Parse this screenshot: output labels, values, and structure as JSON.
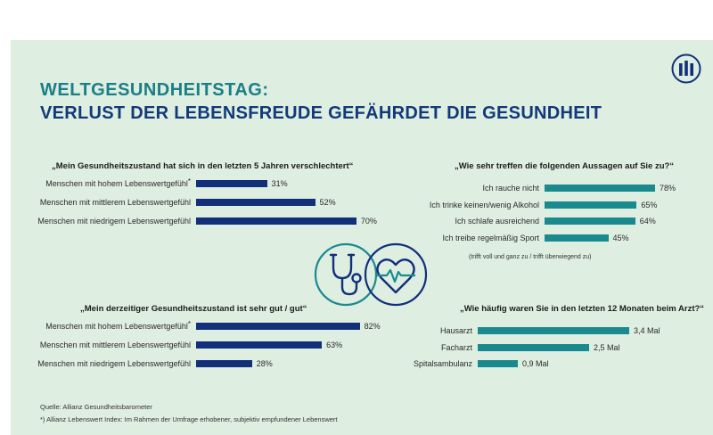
{
  "header": {
    "title_line1": "WELTGESUNDHEITSTAG:",
    "title_line2": "VERLUST DER LEBENSFREUDE GEFÄHRDET DIE GESUNDHEIT"
  },
  "colors": {
    "background": "#deeee1",
    "navy": "#12307a",
    "teal": "#1a8a8f",
    "title_teal": "#1b7f86"
  },
  "chart_data": [
    {
      "type": "bar",
      "orientation": "horizontal",
      "title": "„Mein Gesundheitszustand hat sich in den letzten 5 Jahren verschlechtert“",
      "categories": [
        "Menschen mit hohem Lebenswertgefühl",
        "Menschen mit mittlerem Lebenswertgefühl",
        "Menschen mit niedrigem Lebenswertgefühl"
      ],
      "values": [
        31,
        52,
        70
      ],
      "value_labels": [
        "31%",
        "52%",
        "70%"
      ],
      "asterisk": [
        true,
        false,
        false
      ],
      "xlim": [
        0,
        100
      ],
      "color": "navy"
    },
    {
      "type": "bar",
      "orientation": "horizontal",
      "title": "„Wie sehr treffen die folgenden Aussagen auf Sie zu?“",
      "categories": [
        "Ich rauche nicht",
        "Ich trinke keinen/wenig Alkohol",
        "Ich schlafe ausreichend",
        "Ich treibe regelmäßig Sport"
      ],
      "values": [
        78,
        65,
        64,
        45
      ],
      "value_labels": [
        "78%",
        "65%",
        "64%",
        "45%"
      ],
      "xlim": [
        0,
        100
      ],
      "note": "(trifft voll und ganz zu / trifft überwiegend zu)",
      "color": "teal"
    },
    {
      "type": "bar",
      "orientation": "horizontal",
      "title": "„Mein derzeitiger Gesundheitszustand ist sehr gut / gut“",
      "categories": [
        "Menschen mit hohem Lebenswertgefühl",
        "Menschen mit mittlerem Lebenswertgefühl",
        "Menschen mit niedrigem Lebenswertgefühl"
      ],
      "values": [
        82,
        63,
        28
      ],
      "value_labels": [
        "82%",
        "63%",
        "28%"
      ],
      "asterisk": [
        true,
        false,
        false
      ],
      "xlim": [
        0,
        100
      ],
      "color": "navy"
    },
    {
      "type": "bar",
      "orientation": "horizontal",
      "title": "„Wie häufig waren Sie in den letzten 12 Monaten beim Arzt?“",
      "categories": [
        "Hausarzt",
        "Facharzt",
        "Spitalsambulanz"
      ],
      "values": [
        3.4,
        2.5,
        0.9
      ],
      "value_labels": [
        "3,4 Mal",
        "2,5 Mal",
        "0,9 Mal"
      ],
      "xlim": [
        0,
        4
      ],
      "color": "teal"
    }
  ],
  "icons": {
    "left": "stethoscope-icon",
    "right": "heart-pulse-icon",
    "logo": "allianz-logo-icon"
  },
  "footer": {
    "source": "Quelle: Allianz Gesundheitsbarometer",
    "footnote": "*) Allianz Lebenswert Index: Im Rahmen der Umfrage erhobener, subjektiv empfundener Lebenswert"
  }
}
